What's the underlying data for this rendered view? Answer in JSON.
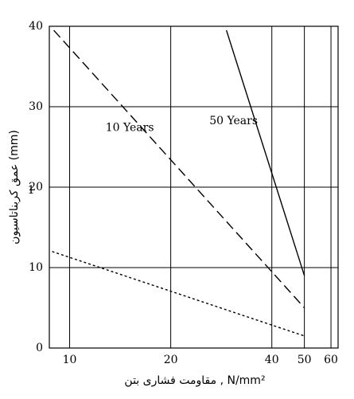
{
  "chart_data": {
    "type": "line",
    "x_label": "مقاومت فشاری بتن ,  N/mm²",
    "y_label": "عمق کربناتاسیون (mm)",
    "xscale": "log",
    "grid": true,
    "xlim": [
      8.7,
      63
    ],
    "xticks": [
      10,
      20,
      40,
      50,
      60
    ],
    "ylim": [
      0,
      40
    ],
    "yticks": [
      0,
      10,
      20,
      30,
      40
    ],
    "series": [
      {
        "name": "50 Years",
        "color": "#000000",
        "dash": "solid",
        "x": [
          29.3,
          50
        ],
        "values": [
          39.5,
          9
        ]
      },
      {
        "name": "10 Years",
        "color": "#000000",
        "dash": "dashed",
        "x": [
          8.97,
          50
        ],
        "values": [
          39.5,
          5
        ]
      },
      {
        "name": "1",
        "color": "#000000",
        "dash": "dotted",
        "x": [
          8.87,
          50
        ],
        "values": [
          12,
          1.5
        ]
      }
    ]
  }
}
